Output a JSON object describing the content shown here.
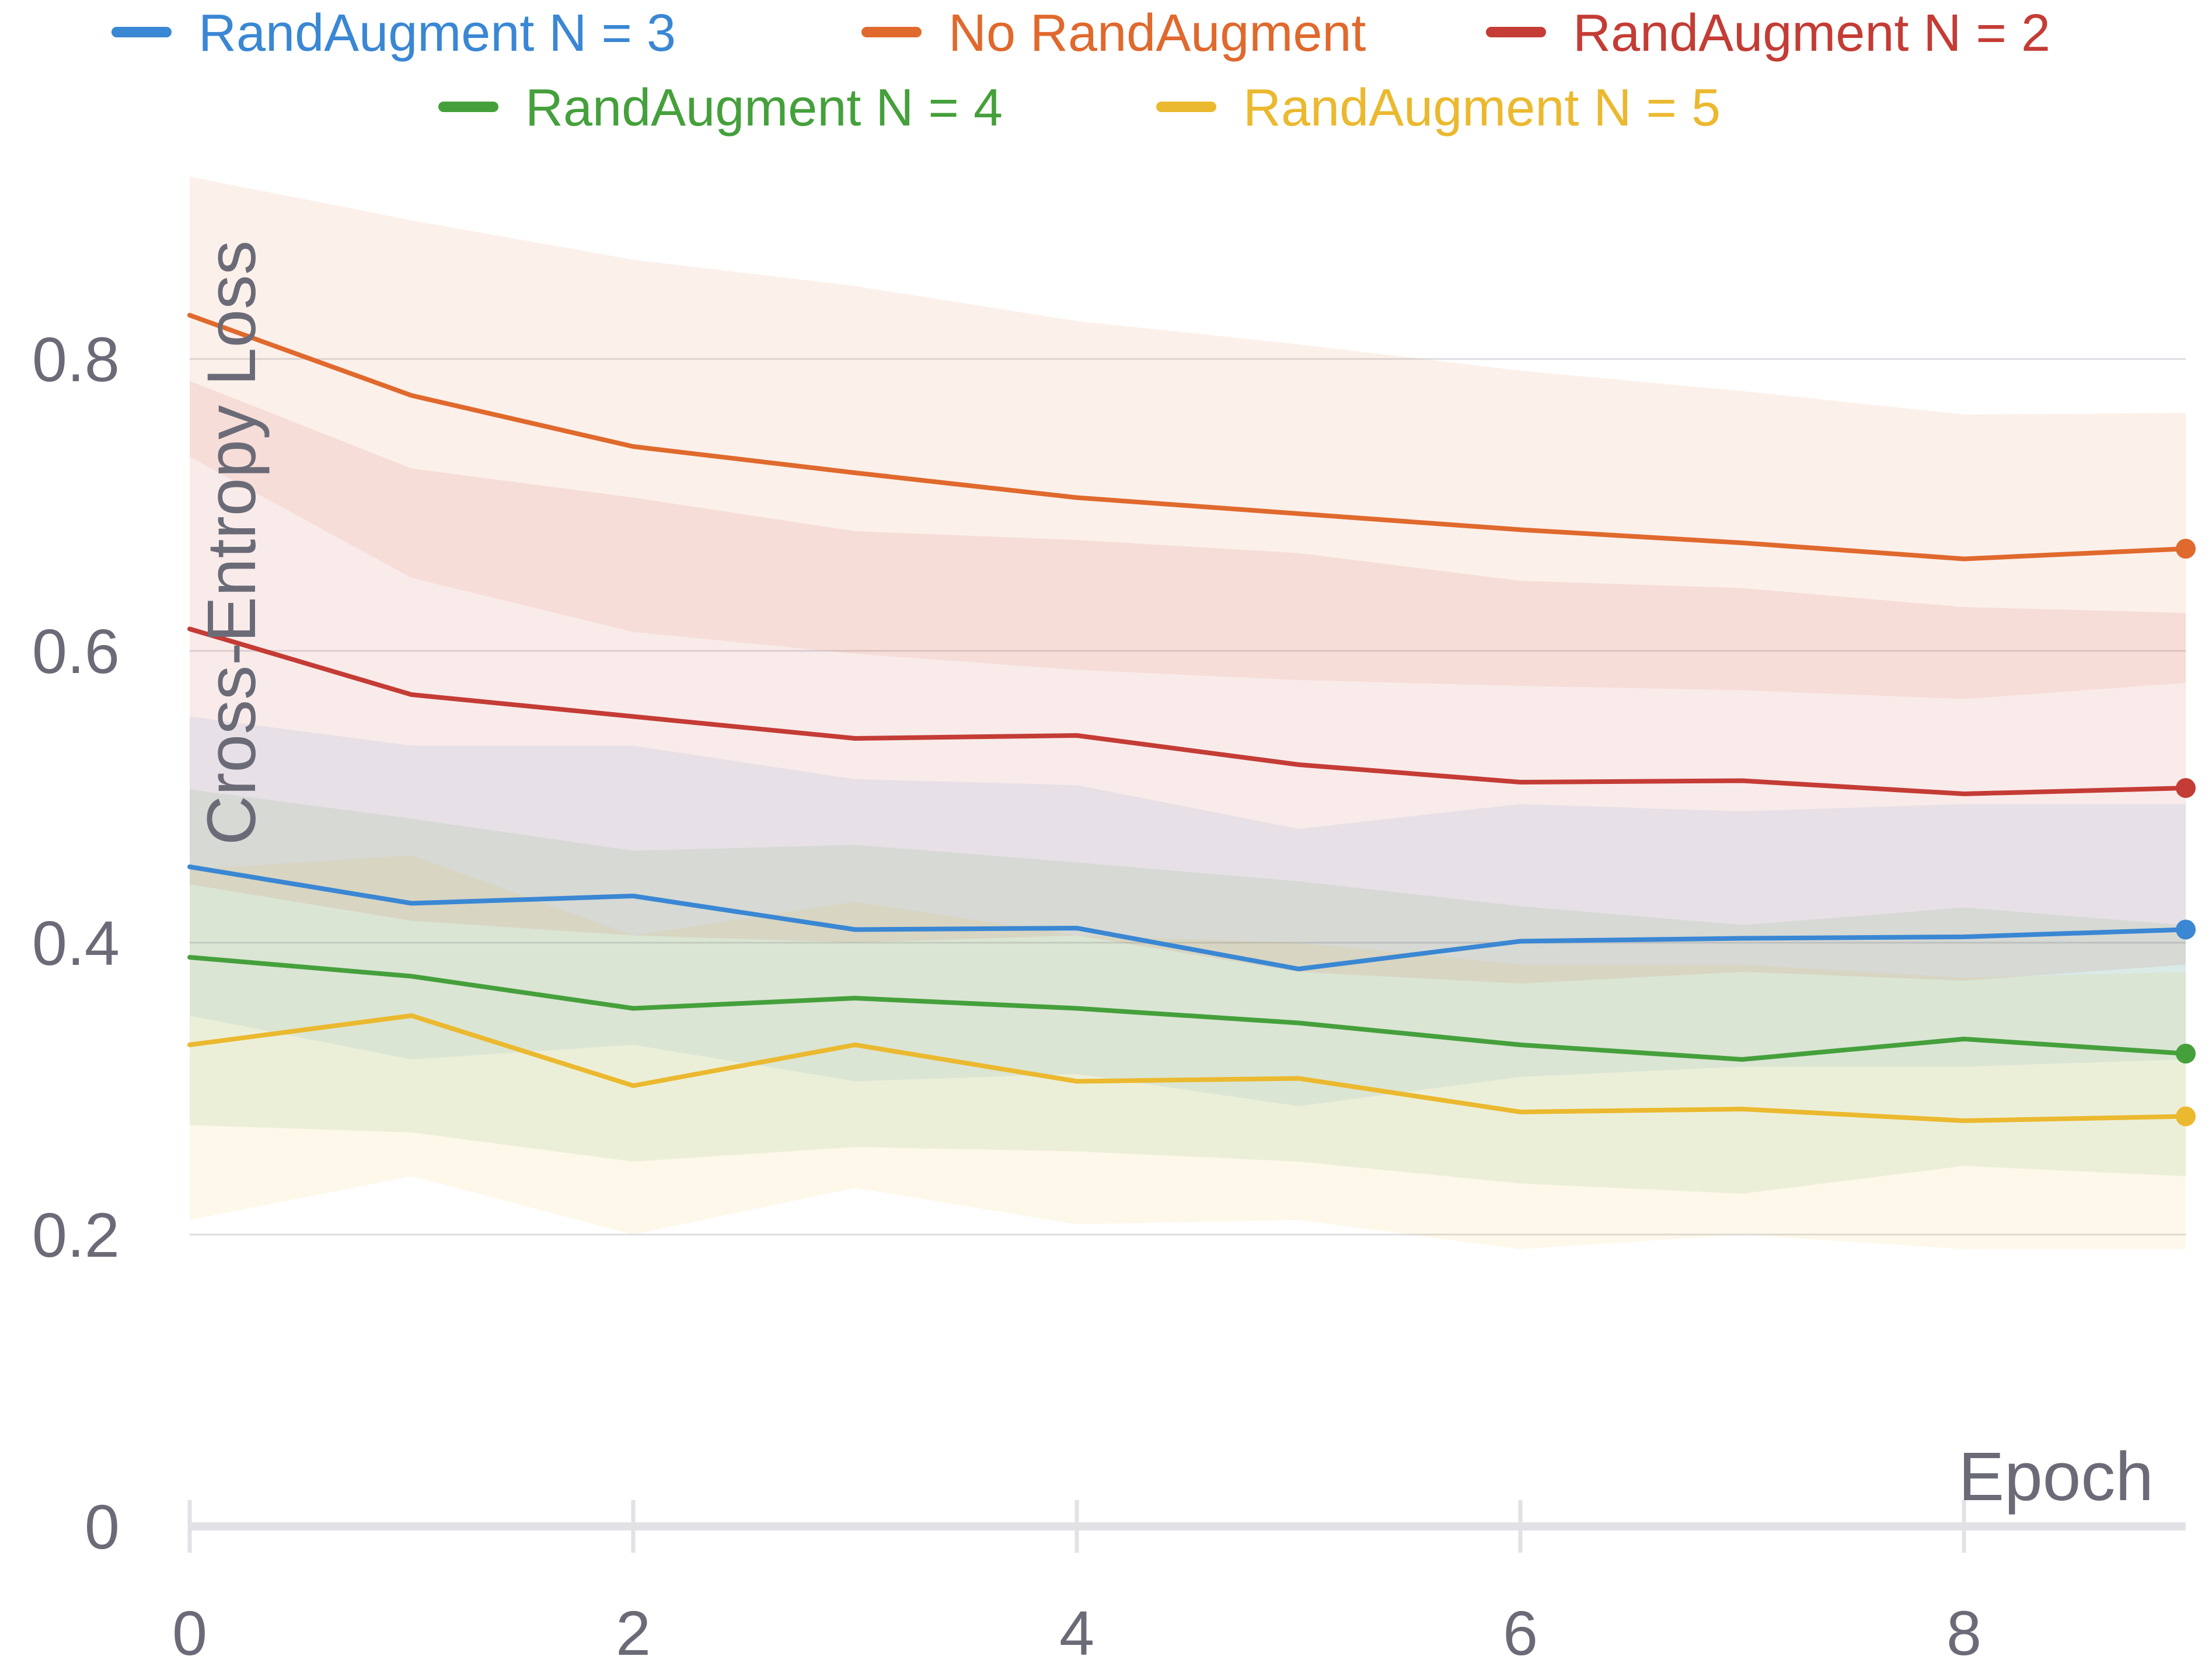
{
  "chart_data": {
    "type": "line",
    "xlabel": "Epoch",
    "ylabel": "Cross-Entropy Loss",
    "xlim": [
      0,
      9
    ],
    "ylim": [
      0,
      0.93
    ],
    "x_ticks": [
      0,
      2,
      4,
      6,
      8
    ],
    "x_tick_labels": [
      "0",
      "2",
      "4",
      "6",
      "8"
    ],
    "y_ticks": [
      0,
      0.2,
      0.4,
      0.6,
      0.8
    ],
    "y_tick_labels": [
      "0",
      "0.2",
      "0.4",
      "0.6",
      "0.8"
    ],
    "grid": true,
    "legend_position": "top",
    "x": [
      0,
      1,
      2,
      3,
      4,
      5,
      6,
      7,
      8,
      9
    ],
    "series": [
      {
        "name": "RandAugment N = 3",
        "color": "#3a87d4",
        "values": [
          0.452,
          0.427,
          0.432,
          0.409,
          0.41,
          0.382,
          0.401,
          0.403,
          0.404,
          0.409
        ],
        "upper": [
          0.555,
          0.535,
          0.535,
          0.512,
          0.508,
          0.478,
          0.495,
          0.49,
          0.495,
          0.495
        ],
        "lower": [
          0.35,
          0.32,
          0.33,
          0.305,
          0.31,
          0.288,
          0.308,
          0.315,
          0.315,
          0.32
        ]
      },
      {
        "name": "No RandAugment",
        "color": "#e0692d",
        "values": [
          0.83,
          0.775,
          0.74,
          0.722,
          0.705,
          0.694,
          0.683,
          0.674,
          0.663,
          0.67
        ],
        "upper": [
          0.925,
          0.895,
          0.868,
          0.85,
          0.826,
          0.81,
          0.792,
          0.778,
          0.762,
          0.763
        ],
        "lower": [
          0.733,
          0.65,
          0.613,
          0.598,
          0.587,
          0.58,
          0.576,
          0.573,
          0.567,
          0.578
        ]
      },
      {
        "name": "RandAugment N = 2",
        "color": "#c43c35",
        "values": [
          0.615,
          0.57,
          0.555,
          0.54,
          0.542,
          0.522,
          0.51,
          0.511,
          0.502,
          0.506
        ],
        "upper": [
          0.785,
          0.725,
          0.705,
          0.682,
          0.676,
          0.667,
          0.648,
          0.643,
          0.63,
          0.626
        ],
        "lower": [
          0.44,
          0.415,
          0.405,
          0.4,
          0.405,
          0.38,
          0.372,
          0.38,
          0.374,
          0.385
        ]
      },
      {
        "name": "RandAugment N = 4",
        "color": "#45a03c",
        "values": [
          0.39,
          0.377,
          0.355,
          0.362,
          0.355,
          0.345,
          0.33,
          0.32,
          0.334,
          0.324
        ],
        "upper": [
          0.505,
          0.485,
          0.463,
          0.467,
          0.455,
          0.442,
          0.425,
          0.412,
          0.424,
          0.412
        ],
        "lower": [
          0.275,
          0.27,
          0.25,
          0.26,
          0.257,
          0.25,
          0.235,
          0.228,
          0.247,
          0.24
        ]
      },
      {
        "name": "RandAugment N = 5",
        "color": "#ebb92f",
        "values": [
          0.33,
          0.35,
          0.302,
          0.33,
          0.305,
          0.307,
          0.284,
          0.286,
          0.278,
          0.281
        ],
        "upper": [
          0.45,
          0.46,
          0.405,
          0.428,
          0.405,
          0.4,
          0.385,
          0.385,
          0.376,
          0.38
        ],
        "lower": [
          0.21,
          0.24,
          0.2,
          0.232,
          0.207,
          0.21,
          0.19,
          0.2,
          0.19,
          0.19
        ]
      }
    ]
  }
}
